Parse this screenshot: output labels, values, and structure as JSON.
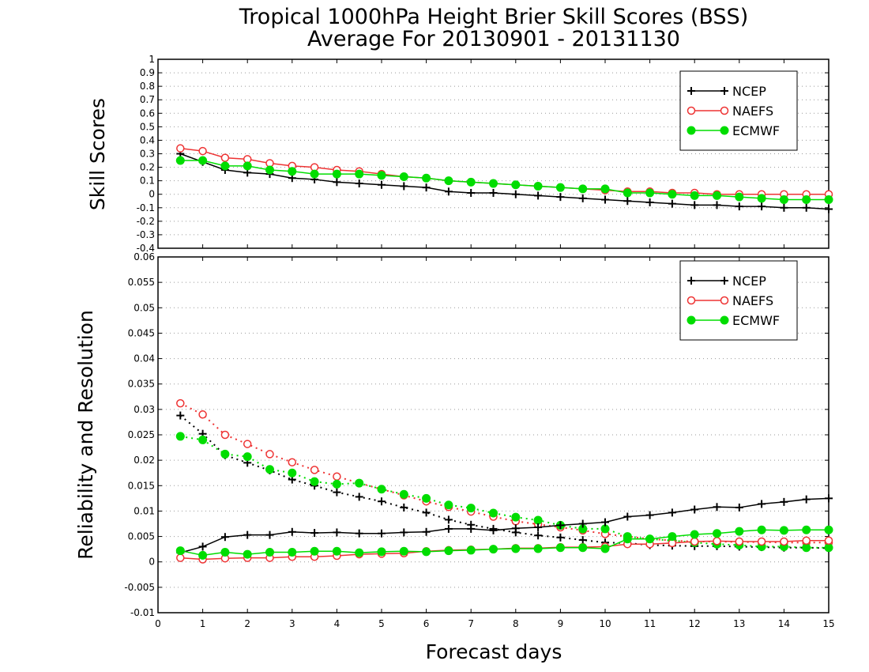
{
  "title_line1": "Tropical 1000hPa Height Brier Skill Scores (BSS)",
  "title_line2": "Average For 20130901 - 20131130",
  "colors": {
    "NCEP": "#000000",
    "NAEFS": "#ee3333",
    "ECMWF": "#00dd00"
  },
  "chart_data": [
    {
      "type": "line",
      "ylabel": "Skill Scores",
      "xlabel": "",
      "xlim": [
        0,
        15
      ],
      "ylim": [
        -0.4,
        1
      ],
      "yticks": [
        "-0.4",
        "-0.3",
        "-0.2",
        "-0.1",
        "0",
        "0.1",
        "0.2",
        "0.3",
        "0.4",
        "0.5",
        "0.6",
        "0.7",
        "0.8",
        "0.9",
        "1"
      ],
      "grid": true,
      "legend": {
        "placement": "top-right",
        "entries": [
          "NCEP",
          "NAEFS",
          "ECMWF"
        ]
      },
      "x": [
        0.5,
        1,
        1.5,
        2,
        2.5,
        3,
        3.5,
        4,
        4.5,
        5,
        5.5,
        6,
        6.5,
        7,
        7.5,
        8,
        8.5,
        9,
        9.5,
        10,
        10.5,
        11,
        11.5,
        12,
        12.5,
        13,
        13.5,
        14,
        14.5,
        15
      ],
      "series": [
        {
          "name": "NCEP",
          "marker": "plus",
          "style": "solid",
          "values": [
            0.3,
            0.24,
            0.18,
            0.16,
            0.15,
            0.12,
            0.11,
            0.09,
            0.08,
            0.07,
            0.06,
            0.05,
            0.02,
            0.01,
            0.01,
            0.0,
            -0.01,
            -0.02,
            -0.03,
            -0.04,
            -0.05,
            -0.06,
            -0.07,
            -0.08,
            -0.08,
            -0.09,
            -0.09,
            -0.1,
            -0.1,
            -0.11
          ]
        },
        {
          "name": "NAEFS",
          "marker": "open-circle",
          "style": "solid",
          "values": [
            0.34,
            0.32,
            0.27,
            0.26,
            0.23,
            0.21,
            0.2,
            0.18,
            0.17,
            0.15,
            0.13,
            0.12,
            0.1,
            0.09,
            0.08,
            0.07,
            0.06,
            0.05,
            0.04,
            0.03,
            0.02,
            0.02,
            0.01,
            0.01,
            0.0,
            0.0,
            0.0,
            0.0,
            0.0,
            0.0
          ]
        },
        {
          "name": "ECMWF",
          "marker": "filled-circle",
          "style": "solid",
          "values": [
            0.25,
            0.25,
            0.21,
            0.21,
            0.18,
            0.17,
            0.15,
            0.15,
            0.15,
            0.14,
            0.13,
            0.12,
            0.1,
            0.09,
            0.08,
            0.07,
            0.06,
            0.05,
            0.04,
            0.04,
            0.01,
            0.01,
            0.0,
            -0.01,
            -0.01,
            -0.02,
            -0.03,
            -0.04,
            -0.04,
            -0.04
          ]
        }
      ]
    },
    {
      "type": "line",
      "ylabel": "Reliability and Resolution",
      "xlabel": "Forecast days",
      "xlim": [
        0,
        15
      ],
      "ylim": [
        -0.01,
        0.06
      ],
      "xticks": [
        "0",
        "1",
        "2",
        "3",
        "4",
        "5",
        "6",
        "7",
        "8",
        "9",
        "10",
        "11",
        "12",
        "13",
        "14",
        "15"
      ],
      "yticks": [
        "-0.01",
        "-0.005",
        "0",
        "0.005",
        "0.01",
        "0.015",
        "0.02",
        "0.025",
        "0.03",
        "0.035",
        "0.04",
        "0.045",
        "0.05",
        "0.055",
        "0.06"
      ],
      "grid": true,
      "legend": {
        "placement": "top-right",
        "entries": [
          "NCEP",
          "NAEFS",
          "ECMWF"
        ]
      },
      "x": [
        0.5,
        1,
        1.5,
        2,
        2.5,
        3,
        3.5,
        4,
        4.5,
        5,
        5.5,
        6,
        6.5,
        7,
        7.5,
        8,
        8.5,
        9,
        9.5,
        10,
        10.5,
        11,
        11.5,
        12,
        12.5,
        13,
        13.5,
        14,
        14.5,
        15
      ],
      "series": [
        {
          "name": "NCEP",
          "group": "Reliability",
          "marker": "plus",
          "style": "dotted",
          "values": [
            0.0288,
            0.0252,
            0.021,
            0.0195,
            0.018,
            0.0162,
            0.015,
            0.0137,
            0.0128,
            0.0119,
            0.0107,
            0.0097,
            0.0083,
            0.0073,
            0.0065,
            0.0058,
            0.0052,
            0.0048,
            0.0043,
            0.0038,
            0.0037,
            0.0033,
            0.0032,
            0.0031,
            0.0031,
            0.003,
            0.0029,
            0.0028,
            0.0028,
            0.0027
          ]
        },
        {
          "name": "NAEFS",
          "group": "Reliability",
          "marker": "open-circle",
          "style": "dotted",
          "values": [
            0.0312,
            0.029,
            0.025,
            0.0232,
            0.0212,
            0.0196,
            0.0181,
            0.0168,
            0.0155,
            0.0143,
            0.0131,
            0.0119,
            0.0108,
            0.0099,
            0.0089,
            0.008,
            0.0074,
            0.0068,
            0.0062,
            0.0055,
            0.005,
            0.0045,
            0.0042,
            0.004,
            0.004,
            0.0039,
            0.0039,
            0.0038,
            0.0038,
            0.0038
          ]
        },
        {
          "name": "ECMWF",
          "group": "Reliability",
          "marker": "filled-circle",
          "style": "dotted",
          "values": [
            0.0247,
            0.024,
            0.0212,
            0.0207,
            0.0182,
            0.0175,
            0.0158,
            0.0153,
            0.0155,
            0.0143,
            0.0133,
            0.0125,
            0.0112,
            0.0106,
            0.0096,
            0.0088,
            0.0082,
            0.0072,
            0.0065,
            0.0065,
            0.005,
            0.0045,
            0.0042,
            0.0038,
            0.0035,
            0.0033,
            0.003,
            0.003,
            0.0028,
            0.0028
          ]
        },
        {
          "name": "NCEP",
          "group": "Resolution",
          "marker": "plus",
          "style": "solid",
          "values": [
            0.0018,
            0.003,
            0.0049,
            0.0053,
            0.0053,
            0.0059,
            0.0057,
            0.0058,
            0.0056,
            0.0056,
            0.0058,
            0.0059,
            0.0065,
            0.0065,
            0.0062,
            0.0066,
            0.0068,
            0.0072,
            0.0075,
            0.0078,
            0.0089,
            0.0092,
            0.0097,
            0.0103,
            0.0108,
            0.0107,
            0.0114,
            0.0118,
            0.0123,
            0.0125
          ]
        },
        {
          "name": "NAEFS",
          "group": "Resolution",
          "marker": "open-circle",
          "style": "solid",
          "values": [
            0.0008,
            0.0005,
            0.0007,
            0.0008,
            0.0008,
            0.001,
            0.001,
            0.0012,
            0.0015,
            0.0016,
            0.0017,
            0.0021,
            0.0023,
            0.0024,
            0.0025,
            0.0027,
            0.0027,
            0.0029,
            0.0029,
            0.003,
            0.0035,
            0.0035,
            0.0037,
            0.004,
            0.0041,
            0.004,
            0.004,
            0.004,
            0.0042,
            0.0042
          ]
        },
        {
          "name": "ECMWF",
          "group": "Resolution",
          "marker": "filled-circle",
          "style": "solid",
          "values": [
            0.0022,
            0.0013,
            0.0019,
            0.0015,
            0.0019,
            0.0019,
            0.0021,
            0.0021,
            0.0018,
            0.002,
            0.0021,
            0.002,
            0.0022,
            0.0023,
            0.0025,
            0.0026,
            0.0026,
            0.0028,
            0.0028,
            0.0026,
            0.0045,
            0.0045,
            0.005,
            0.0054,
            0.0056,
            0.006,
            0.0063,
            0.0062,
            0.0063,
            0.0063
          ]
        }
      ]
    }
  ]
}
